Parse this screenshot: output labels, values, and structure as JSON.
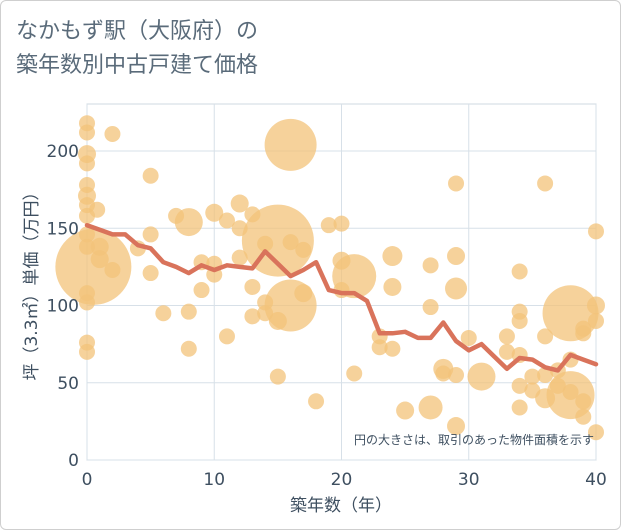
{
  "chart_data": {
    "type": "scatter",
    "title_line1": "なかもず駅（大阪府）の",
    "title_line2": "築年数別中古戸建て価格",
    "xlabel": "築年数（年）",
    "ylabel": "坪（3.3㎡）単価（万円）",
    "xlim": [
      0,
      40
    ],
    "ylim": [
      0,
      230
    ],
    "x_ticks": [
      0,
      10,
      20,
      30,
      40
    ],
    "y_ticks": [
      0,
      50,
      100,
      150,
      200
    ],
    "note": "円の大きさは、取引のあった物件面積を示す",
    "bubble_color": "#f3c37a",
    "line_color": "#d9735b",
    "grid": true,
    "scatter": [
      {
        "x": 0,
        "y": 218,
        "s": 8
      },
      {
        "x": 0,
        "y": 212,
        "s": 8
      },
      {
        "x": 0,
        "y": 198,
        "s": 9
      },
      {
        "x": 0,
        "y": 192,
        "s": 8
      },
      {
        "x": 0,
        "y": 178,
        "s": 8
      },
      {
        "x": 0,
        "y": 171,
        "s": 9
      },
      {
        "x": 0,
        "y": 165,
        "s": 8
      },
      {
        "x": 0,
        "y": 158,
        "s": 8
      },
      {
        "x": 0,
        "y": 146,
        "s": 8
      },
      {
        "x": 0,
        "y": 138,
        "s": 8
      },
      {
        "x": 0,
        "y": 108,
        "s": 8
      },
      {
        "x": 0,
        "y": 102,
        "s": 8
      },
      {
        "x": 0,
        "y": 76,
        "s": 8
      },
      {
        "x": 0,
        "y": 70,
        "s": 8
      },
      {
        "x": 0.5,
        "y": 125,
        "s": 38
      },
      {
        "x": 0.8,
        "y": 162,
        "s": 8
      },
      {
        "x": 1,
        "y": 138,
        "s": 9
      },
      {
        "x": 1,
        "y": 130,
        "s": 9
      },
      {
        "x": 2,
        "y": 211,
        "s": 8
      },
      {
        "x": 2,
        "y": 123,
        "s": 8
      },
      {
        "x": 4,
        "y": 137,
        "s": 8
      },
      {
        "x": 5,
        "y": 184,
        "s": 8
      },
      {
        "x": 5,
        "y": 146,
        "s": 8
      },
      {
        "x": 5,
        "y": 121,
        "s": 8
      },
      {
        "x": 6,
        "y": 95,
        "s": 8
      },
      {
        "x": 7,
        "y": 158,
        "s": 8
      },
      {
        "x": 8,
        "y": 154,
        "s": 14
      },
      {
        "x": 8,
        "y": 96,
        "s": 8
      },
      {
        "x": 8,
        "y": 72,
        "s": 8
      },
      {
        "x": 9,
        "y": 128,
        "s": 8
      },
      {
        "x": 9,
        "y": 110,
        "s": 8
      },
      {
        "x": 10,
        "y": 160,
        "s": 9
      },
      {
        "x": 10,
        "y": 127,
        "s": 8
      },
      {
        "x": 10,
        "y": 120,
        "s": 8
      },
      {
        "x": 11,
        "y": 155,
        "s": 8
      },
      {
        "x": 11,
        "y": 80,
        "s": 8
      },
      {
        "x": 12,
        "y": 166,
        "s": 9
      },
      {
        "x": 12,
        "y": 150,
        "s": 8
      },
      {
        "x": 12,
        "y": 131,
        "s": 8
      },
      {
        "x": 13,
        "y": 159,
        "s": 8
      },
      {
        "x": 13,
        "y": 112,
        "s": 8
      },
      {
        "x": 13,
        "y": 93,
        "s": 8
      },
      {
        "x": 14,
        "y": 140,
        "s": 8
      },
      {
        "x": 14,
        "y": 102,
        "s": 8
      },
      {
        "x": 14,
        "y": 95,
        "s": 8
      },
      {
        "x": 15,
        "y": 142,
        "s": 36
      },
      {
        "x": 15,
        "y": 90,
        "s": 9
      },
      {
        "x": 15,
        "y": 54,
        "s": 8
      },
      {
        "x": 16,
        "y": 204,
        "s": 26
      },
      {
        "x": 16,
        "y": 141,
        "s": 8
      },
      {
        "x": 16,
        "y": 100,
        "s": 26
      },
      {
        "x": 17,
        "y": 136,
        "s": 8
      },
      {
        "x": 17,
        "y": 108,
        "s": 9
      },
      {
        "x": 18,
        "y": 38,
        "s": 8
      },
      {
        "x": 19,
        "y": 152,
        "s": 8
      },
      {
        "x": 20,
        "y": 153,
        "s": 8
      },
      {
        "x": 20,
        "y": 129,
        "s": 9
      },
      {
        "x": 20,
        "y": 110,
        "s": 8
      },
      {
        "x": 21,
        "y": 119,
        "s": 22
      },
      {
        "x": 21,
        "y": 56,
        "s": 8
      },
      {
        "x": 23,
        "y": 80,
        "s": 8
      },
      {
        "x": 23,
        "y": 73,
        "s": 8
      },
      {
        "x": 24,
        "y": 132,
        "s": 10
      },
      {
        "x": 24,
        "y": 112,
        "s": 9
      },
      {
        "x": 24,
        "y": 72,
        "s": 8
      },
      {
        "x": 25,
        "y": 32,
        "s": 9
      },
      {
        "x": 27,
        "y": 126,
        "s": 8
      },
      {
        "x": 27,
        "y": 99,
        "s": 8
      },
      {
        "x": 27,
        "y": 34,
        "s": 12
      },
      {
        "x": 28,
        "y": 59,
        "s": 10
      },
      {
        "x": 28,
        "y": 56,
        "s": 8
      },
      {
        "x": 29,
        "y": 179,
        "s": 8
      },
      {
        "x": 29,
        "y": 132,
        "s": 9
      },
      {
        "x": 29,
        "y": 111,
        "s": 11
      },
      {
        "x": 29,
        "y": 55,
        "s": 8
      },
      {
        "x": 29,
        "y": 22,
        "s": 9
      },
      {
        "x": 30,
        "y": 79,
        "s": 8
      },
      {
        "x": 31,
        "y": 54,
        "s": 14
      },
      {
        "x": 33,
        "y": 70,
        "s": 8
      },
      {
        "x": 33,
        "y": 80,
        "s": 8
      },
      {
        "x": 34,
        "y": 122,
        "s": 8
      },
      {
        "x": 34,
        "y": 96,
        "s": 8
      },
      {
        "x": 34,
        "y": 90,
        "s": 8
      },
      {
        "x": 34,
        "y": 68,
        "s": 8
      },
      {
        "x": 34,
        "y": 48,
        "s": 8
      },
      {
        "x": 34,
        "y": 34,
        "s": 8
      },
      {
        "x": 35,
        "y": 54,
        "s": 8
      },
      {
        "x": 35,
        "y": 45,
        "s": 8
      },
      {
        "x": 36,
        "y": 179,
        "s": 8
      },
      {
        "x": 36,
        "y": 80,
        "s": 8
      },
      {
        "x": 36,
        "y": 55,
        "s": 8
      },
      {
        "x": 36,
        "y": 40,
        "s": 10
      },
      {
        "x": 37,
        "y": 58,
        "s": 8
      },
      {
        "x": 37,
        "y": 48,
        "s": 8
      },
      {
        "x": 38,
        "y": 95,
        "s": 28
      },
      {
        "x": 38,
        "y": 42,
        "s": 24
      },
      {
        "x": 38,
        "y": 44,
        "s": 8
      },
      {
        "x": 38,
        "y": 65,
        "s": 8
      },
      {
        "x": 39,
        "y": 85,
        "s": 8
      },
      {
        "x": 39,
        "y": 82,
        "s": 8
      },
      {
        "x": 39,
        "y": 38,
        "s": 8
      },
      {
        "x": 39,
        "y": 28,
        "s": 8
      },
      {
        "x": 40,
        "y": 148,
        "s": 8
      },
      {
        "x": 40,
        "y": 100,
        "s": 9
      },
      {
        "x": 40,
        "y": 90,
        "s": 8
      },
      {
        "x": 40,
        "y": 18,
        "s": 8
      }
    ],
    "line": [
      {
        "x": 0,
        "y": 152
      },
      {
        "x": 1,
        "y": 149
      },
      {
        "x": 2,
        "y": 146
      },
      {
        "x": 3,
        "y": 146
      },
      {
        "x": 4,
        "y": 139
      },
      {
        "x": 5,
        "y": 137
      },
      {
        "x": 6,
        "y": 128
      },
      {
        "x": 7,
        "y": 125
      },
      {
        "x": 8,
        "y": 121
      },
      {
        "x": 9,
        "y": 126
      },
      {
        "x": 10,
        "y": 123
      },
      {
        "x": 11,
        "y": 126
      },
      {
        "x": 12,
        "y": 125
      },
      {
        "x": 13,
        "y": 124
      },
      {
        "x": 14,
        "y": 135
      },
      {
        "x": 15,
        "y": 127
      },
      {
        "x": 16,
        "y": 119
      },
      {
        "x": 17,
        "y": 123
      },
      {
        "x": 18,
        "y": 128
      },
      {
        "x": 19,
        "y": 110
      },
      {
        "x": 20,
        "y": 108
      },
      {
        "x": 21,
        "y": 108
      },
      {
        "x": 22,
        "y": 103
      },
      {
        "x": 23,
        "y": 82
      },
      {
        "x": 24,
        "y": 82
      },
      {
        "x": 25,
        "y": 83
      },
      {
        "x": 26,
        "y": 79
      },
      {
        "x": 27,
        "y": 79
      },
      {
        "x": 28,
        "y": 89
      },
      {
        "x": 29,
        "y": 77
      },
      {
        "x": 30,
        "y": 71
      },
      {
        "x": 31,
        "y": 75
      },
      {
        "x": 32,
        "y": 67
      },
      {
        "x": 33,
        "y": 59
      },
      {
        "x": 34,
        "y": 66
      },
      {
        "x": 35,
        "y": 65
      },
      {
        "x": 36,
        "y": 60
      },
      {
        "x": 37,
        "y": 58
      },
      {
        "x": 38,
        "y": 68
      },
      {
        "x": 39,
        "y": 65
      },
      {
        "x": 40,
        "y": 62
      }
    ]
  }
}
